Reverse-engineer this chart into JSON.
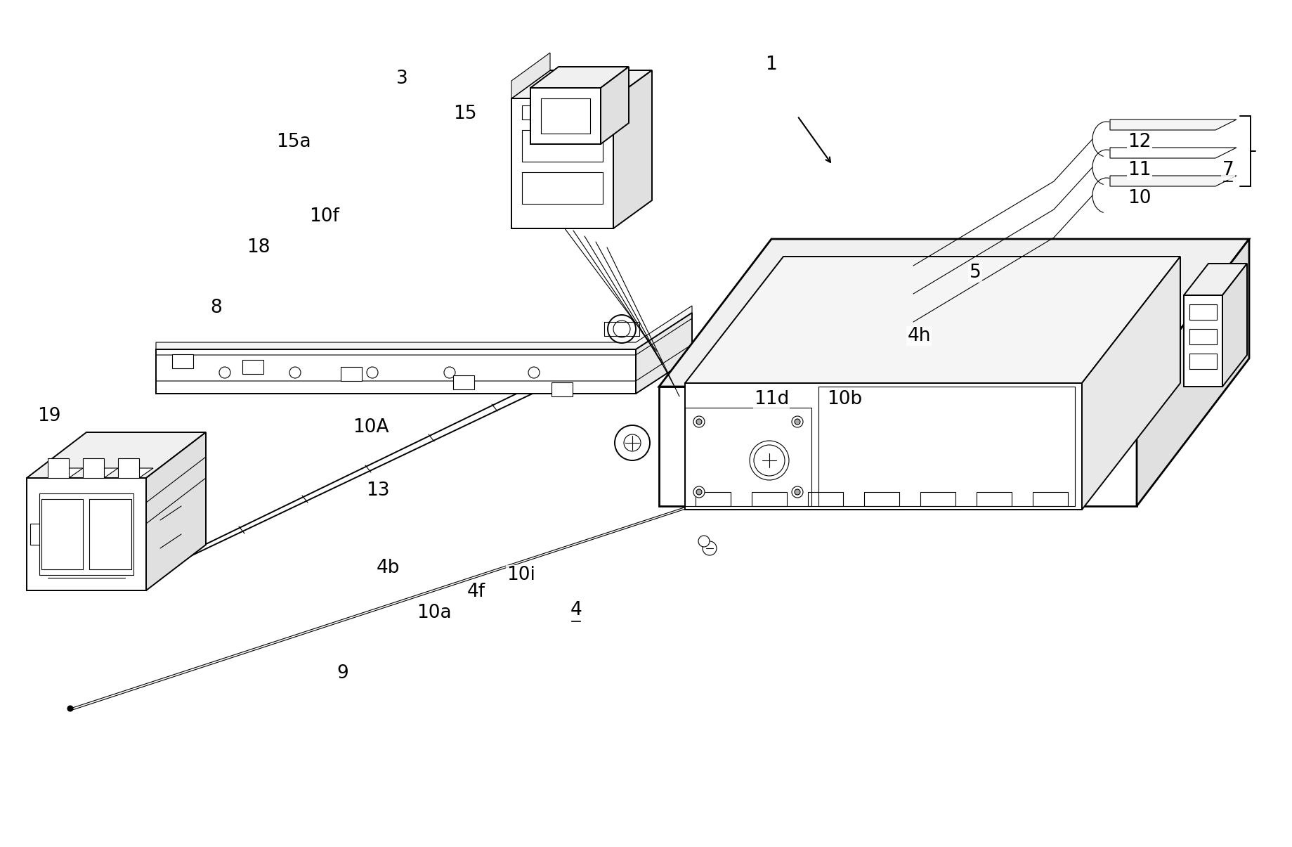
{
  "background_color": "#ffffff",
  "fig_width": 18.39,
  "fig_height": 12.05,
  "dpi": 100,
  "lw1": 0.8,
  "lw2": 1.4,
  "lw3": 2.0,
  "fontsize": 19,
  "labels": {
    "1": [
      1098,
      92,
      false
    ],
    "3": [
      572,
      112,
      false
    ],
    "4": [
      820,
      868,
      true
    ],
    "4b": [
      552,
      808,
      false
    ],
    "4f": [
      678,
      842,
      false
    ],
    "4h": [
      1308,
      478,
      false
    ],
    "5": [
      1388,
      388,
      false
    ],
    "7": [
      1748,
      242,
      true
    ],
    "8": [
      308,
      438,
      false
    ],
    "9": [
      488,
      958,
      false
    ],
    "10": [
      1622,
      282,
      false
    ],
    "10A": [
      528,
      608,
      false
    ],
    "10a": [
      618,
      872,
      false
    ],
    "10b": [
      1202,
      568,
      false
    ],
    "10f": [
      462,
      308,
      false
    ],
    "10i": [
      742,
      818,
      false
    ],
    "11": [
      1622,
      242,
      false
    ],
    "11d": [
      1098,
      568,
      false
    ],
    "12": [
      1622,
      202,
      false
    ],
    "13": [
      538,
      698,
      false
    ],
    "15": [
      662,
      162,
      false
    ],
    "15a": [
      418,
      202,
      false
    ],
    "18": [
      368,
      352,
      false
    ],
    "19": [
      70,
      592,
      false
    ]
  }
}
